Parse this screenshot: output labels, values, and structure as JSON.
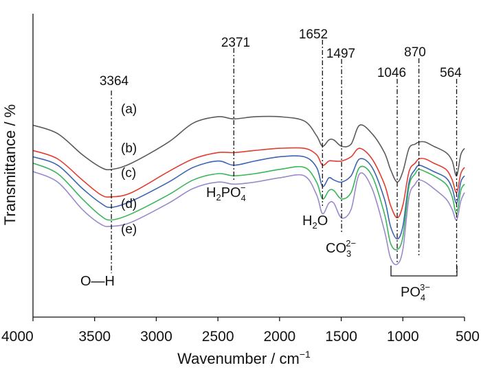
{
  "chart_data": {
    "type": "line",
    "title": "",
    "xlabel_main": "Wavenumber / cm",
    "xlabel_sup": "−1",
    "ylabel": "Transmittance / %",
    "xlim": [
      4000,
      500
    ],
    "x_reversed": true,
    "x_ticks": [
      4000,
      3500,
      3000,
      2500,
      2000,
      1500,
      1000,
      500
    ],
    "y_ticks_labeled": false,
    "grid": false,
    "series": [
      {
        "name": "(a)",
        "color": "#5a5a5a",
        "points": [
          [
            4000,
            66
          ],
          [
            3800,
            62
          ],
          [
            3600,
            52
          ],
          [
            3450,
            46
          ],
          [
            3364,
            45
          ],
          [
            3200,
            48
          ],
          [
            2900,
            58
          ],
          [
            2700,
            67
          ],
          [
            2500,
            70
          ],
          [
            2371,
            69
          ],
          [
            2200,
            70
          ],
          [
            2000,
            70
          ],
          [
            1800,
            68
          ],
          [
            1700,
            61
          ],
          [
            1652,
            56
          ],
          [
            1600,
            59
          ],
          [
            1560,
            59
          ],
          [
            1497,
            56
          ],
          [
            1420,
            57
          ],
          [
            1350,
            66
          ],
          [
            1250,
            62
          ],
          [
            1150,
            53
          ],
          [
            1100,
            45
          ],
          [
            1046,
            39
          ],
          [
            1000,
            44
          ],
          [
            950,
            55
          ],
          [
            900,
            57
          ],
          [
            870,
            58
          ],
          [
            820,
            58
          ],
          [
            750,
            56
          ],
          [
            650,
            53
          ],
          [
            600,
            49
          ],
          [
            564,
            42
          ],
          [
            530,
            52
          ],
          [
            500,
            55
          ]
        ]
      },
      {
        "name": "(b)",
        "color": "#e23b2f",
        "points": [
          [
            4000,
            54
          ],
          [
            3800,
            50
          ],
          [
            3600,
            40
          ],
          [
            3450,
            33
          ],
          [
            3364,
            32
          ],
          [
            3200,
            34
          ],
          [
            2900,
            44
          ],
          [
            2700,
            50
          ],
          [
            2500,
            53
          ],
          [
            2371,
            53
          ],
          [
            2200,
            54
          ],
          [
            2000,
            55
          ],
          [
            1800,
            55
          ],
          [
            1700,
            52
          ],
          [
            1652,
            47
          ],
          [
            1600,
            49
          ],
          [
            1560,
            49
          ],
          [
            1497,
            49
          ],
          [
            1420,
            51
          ],
          [
            1350,
            55
          ],
          [
            1250,
            50
          ],
          [
            1150,
            38
          ],
          [
            1100,
            28
          ],
          [
            1046,
            22
          ],
          [
            1000,
            28
          ],
          [
            950,
            44
          ],
          [
            900,
            48
          ],
          [
            870,
            50
          ],
          [
            820,
            50
          ],
          [
            750,
            48
          ],
          [
            650,
            45
          ],
          [
            600,
            40
          ],
          [
            564,
            34
          ],
          [
            530,
            43
          ],
          [
            500,
            46
          ]
        ]
      },
      {
        "name": "(c)",
        "color": "#3b64b4",
        "points": [
          [
            4000,
            51
          ],
          [
            3800,
            47
          ],
          [
            3600,
            36
          ],
          [
            3450,
            29
          ],
          [
            3364,
            27
          ],
          [
            3200,
            30
          ],
          [
            2900,
            39
          ],
          [
            2700,
            46
          ],
          [
            2500,
            49
          ],
          [
            2371,
            47
          ],
          [
            2200,
            49
          ],
          [
            2000,
            51
          ],
          [
            1800,
            51
          ],
          [
            1700,
            46
          ],
          [
            1652,
            37
          ],
          [
            1600,
            41
          ],
          [
            1560,
            40
          ],
          [
            1497,
            39
          ],
          [
            1420,
            42
          ],
          [
            1350,
            50
          ],
          [
            1250,
            46
          ],
          [
            1150,
            31
          ],
          [
            1100,
            18
          ],
          [
            1046,
            12
          ],
          [
            1000,
            18
          ],
          [
            950,
            39
          ],
          [
            900,
            45
          ],
          [
            870,
            47
          ],
          [
            820,
            46
          ],
          [
            750,
            44
          ],
          [
            650,
            41
          ],
          [
            600,
            36
          ],
          [
            564,
            29
          ],
          [
            530,
            39
          ],
          [
            500,
            42
          ]
        ]
      },
      {
        "name": "(d)",
        "color": "#3ab55a",
        "points": [
          [
            4000,
            48
          ],
          [
            3800,
            43
          ],
          [
            3600,
            31
          ],
          [
            3450,
            23
          ],
          [
            3364,
            21
          ],
          [
            3200,
            24
          ],
          [
            2900,
            33
          ],
          [
            2700,
            40
          ],
          [
            2500,
            43
          ],
          [
            2371,
            42
          ],
          [
            2200,
            43
          ],
          [
            2000,
            45
          ],
          [
            1800,
            46
          ],
          [
            1700,
            39
          ],
          [
            1652,
            31
          ],
          [
            1600,
            35
          ],
          [
            1560,
            35
          ],
          [
            1497,
            31
          ],
          [
            1420,
            34
          ],
          [
            1350,
            46
          ],
          [
            1250,
            42
          ],
          [
            1150,
            24
          ],
          [
            1100,
            10
          ],
          [
            1046,
            7
          ],
          [
            1000,
            13
          ],
          [
            950,
            37
          ],
          [
            900,
            43
          ],
          [
            870,
            45
          ],
          [
            820,
            44
          ],
          [
            750,
            42
          ],
          [
            650,
            38
          ],
          [
            600,
            32
          ],
          [
            564,
            24
          ],
          [
            530,
            35
          ],
          [
            500,
            38
          ]
        ]
      },
      {
        "name": "(e)",
        "color": "#9b88cc",
        "points": [
          [
            4000,
            44
          ],
          [
            3800,
            39
          ],
          [
            3600,
            26
          ],
          [
            3450,
            19
          ],
          [
            3364,
            18
          ],
          [
            3200,
            20
          ],
          [
            2900,
            29
          ],
          [
            2700,
            36
          ],
          [
            2500,
            39
          ],
          [
            2371,
            38
          ],
          [
            2200,
            39
          ],
          [
            2000,
            41
          ],
          [
            1800,
            42
          ],
          [
            1700,
            33
          ],
          [
            1652,
            24
          ],
          [
            1600,
            29
          ],
          [
            1560,
            29
          ],
          [
            1497,
            22
          ],
          [
            1420,
            26
          ],
          [
            1350,
            43
          ],
          [
            1250,
            36
          ],
          [
            1150,
            16
          ],
          [
            1100,
            3
          ],
          [
            1046,
            0
          ],
          [
            1000,
            7
          ],
          [
            950,
            32
          ],
          [
            900,
            38
          ],
          [
            870,
            40
          ],
          [
            820,
            39
          ],
          [
            750,
            36
          ],
          [
            650,
            31
          ],
          [
            600,
            26
          ],
          [
            564,
            21
          ],
          [
            530,
            30
          ],
          [
            500,
            34
          ]
        ]
      }
    ],
    "curve_labels": [
      "(a)",
      "(b)",
      "(c)",
      "(d)",
      "(e)"
    ],
    "peak_markers": [
      {
        "x": 3364,
        "label": "3364"
      },
      {
        "x": 2371,
        "label": "2371"
      },
      {
        "x": 1652,
        "label": "1652"
      },
      {
        "x": 1497,
        "label": "1497"
      },
      {
        "x": 1046,
        "label": "1046"
      },
      {
        "x": 870,
        "label": "870"
      },
      {
        "x": 564,
        "label": "564"
      }
    ],
    "annotations": {
      "oh": "O—H",
      "h2po4": {
        "pre": "H",
        "s1": "2",
        "mid": "PO",
        "sub": "4",
        "sup": "−"
      },
      "h2o": {
        "pre": "H",
        "sub": "2",
        "post": "O"
      },
      "co3": {
        "pre": "CO",
        "sub": "3",
        "sup": "2−"
      },
      "po4": {
        "pre": "PO",
        "sub": "4",
        "sup": "3−"
      }
    }
  }
}
